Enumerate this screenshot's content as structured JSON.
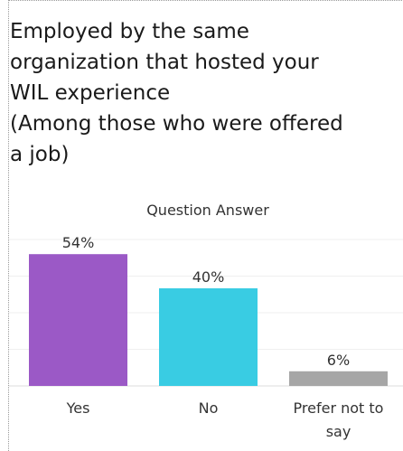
{
  "title_lines": [
    "Employed by the same",
    "organization that hosted your",
    "WIL experience",
    "(Among those who were offered",
    "a job)"
  ],
  "chart_data": {
    "type": "bar",
    "column_header": "Question Answer",
    "categories": [
      "Yes",
      "No",
      "Prefer not to say"
    ],
    "category_label_lines": [
      [
        "Yes"
      ],
      [
        "No"
      ],
      [
        "Prefer not to",
        "say"
      ]
    ],
    "values": [
      54,
      40,
      6
    ],
    "value_labels": [
      "54%",
      "40%",
      "6%"
    ],
    "ylim": [
      0,
      60
    ],
    "colors": [
      "#9b59c6",
      "#39cce3",
      "#a6a6a6"
    ],
    "grid": true
  }
}
